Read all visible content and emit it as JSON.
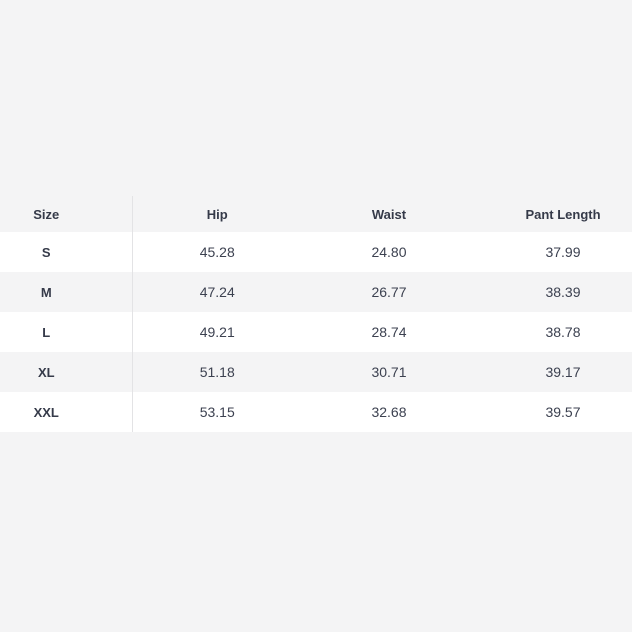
{
  "table": {
    "name": "size-chart",
    "columns": [
      "Size",
      "Hip",
      "Waist",
      "Pant Length"
    ],
    "rows": [
      {
        "size": "S",
        "hip": "45.28",
        "waist": "24.80",
        "pant_length": "37.99"
      },
      {
        "size": "M",
        "hip": "47.24",
        "waist": "26.77",
        "pant_length": "38.39"
      },
      {
        "size": "L",
        "hip": "49.21",
        "waist": "28.74",
        "pant_length": "38.78"
      },
      {
        "size": "XL",
        "hip": "51.18",
        "waist": "30.71",
        "pant_length": "39.17"
      },
      {
        "size": "XXL",
        "hip": "53.15",
        "waist": "32.68",
        "pant_length": "39.57"
      }
    ]
  },
  "colors": {
    "page_bg": "#f4f4f5",
    "row_bg": "#ffffff",
    "row_alt_bg": "#f4f4f5",
    "divider": "#e3e3e5",
    "header_text": "#353a49",
    "value_text": "#3c4150"
  }
}
